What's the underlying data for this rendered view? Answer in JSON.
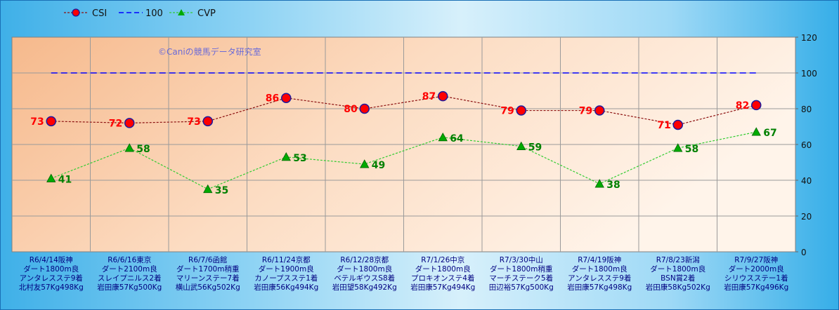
{
  "chart_data": {
    "type": "line",
    "watermark": "©Caniの競馬データ研究室",
    "ylim": [
      0,
      120
    ],
    "yticks": [
      0,
      20,
      40,
      60,
      80,
      100,
      120
    ],
    "grid": true,
    "legend_position": "top-left",
    "categories": [
      [
        "R6/4/14阪神",
        "ダート1800m良",
        "アンタレスステ9着",
        "北村友57Kg498Kg"
      ],
      [
        "R6/6/16東京",
        "ダート2100m良",
        "スレイプニルス2着",
        "岩田康57Kg500Kg"
      ],
      [
        "R6/7/6函館",
        "ダート1700m稍重",
        "マリーンステー7着",
        "横山武56Kg502Kg"
      ],
      [
        "R6/11/24京都",
        "ダート1900m良",
        "カノープスステ1着",
        "岩田康56Kg494Kg"
      ],
      [
        "R6/12/28京都",
        "ダート1800m良",
        "ベテルギウスS8着",
        "岩田望58Kg492Kg"
      ],
      [
        "R7/1/26中京",
        "ダート1800m良",
        "プロキオンステ4着",
        "岩田康57Kg494Kg"
      ],
      [
        "R7/3/30中山",
        "ダート1800m稍重",
        "マーチステーク5着",
        "田辺裕57Kg500Kg"
      ],
      [
        "R7/4/19阪神",
        "ダート1800m良",
        "アンタレスステ9着",
        "岩田康57Kg498Kg"
      ],
      [
        "R7/8/23新潟",
        "ダート1800m良",
        "BSN賞2着",
        "岩田康58Kg502Kg"
      ],
      [
        "R7/9/27阪神",
        "ダート2000m良",
        "シリウスステー1着",
        "岩田康57Kg496Kg"
      ]
    ],
    "series": [
      {
        "name": "CSI",
        "values": [
          73,
          72,
          73,
          86,
          80,
          87,
          79,
          79,
          71,
          82
        ],
        "color": "#8b1010",
        "marker_color": "#ff0000",
        "label_color": "#ff0000"
      },
      {
        "name": "100",
        "values": [
          100,
          100,
          100,
          100,
          100,
          100,
          100,
          100,
          100,
          100
        ],
        "color": "#0000ff"
      },
      {
        "name": "CVP",
        "values": [
          41,
          58,
          35,
          53,
          49,
          64,
          59,
          38,
          58,
          67
        ],
        "color": "#33cc33",
        "marker_color": "#00aa00",
        "label_color": "#008000"
      }
    ]
  }
}
